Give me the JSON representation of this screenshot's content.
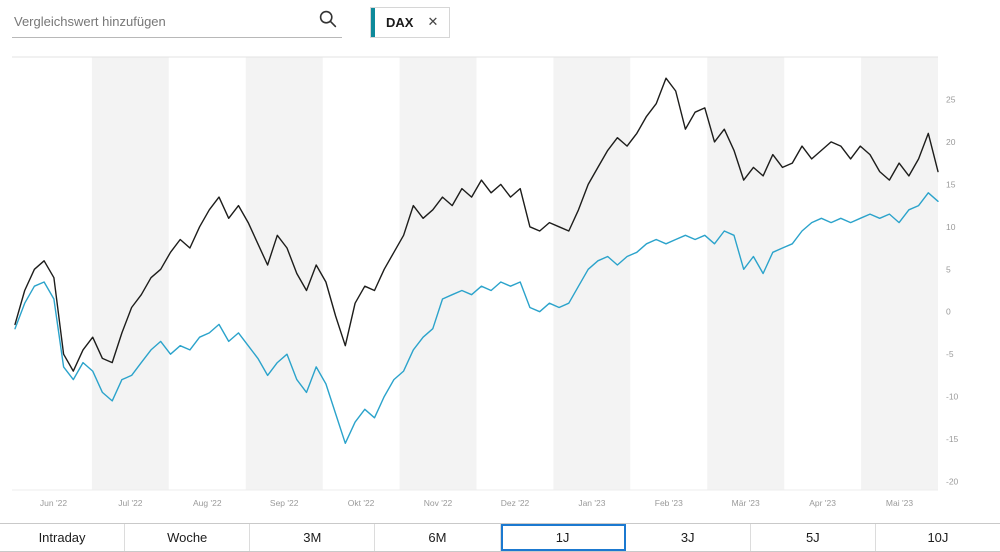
{
  "topbar": {
    "search_placeholder": "Vergleichswert hinzufügen",
    "search_icon": "magnifier-icon",
    "chip": {
      "label": "DAX",
      "accent_color": "#0e8a9b",
      "close_icon": "✕"
    }
  },
  "chart_data": {
    "type": "line",
    "title": "",
    "xlabel": "",
    "ylabel": "",
    "categories": [
      "Jun '22",
      "Jul '22",
      "Aug '22",
      "Sep '22",
      "Okt '22",
      "Nov '22",
      "Dez '22",
      "Jan '23",
      "Feb '23",
      "Mär '23",
      "Apr '23",
      "Mai '23"
    ],
    "points_per_month": 8,
    "ylim": [
      -21,
      30
    ],
    "yticks": [
      25,
      20,
      15,
      10,
      5,
      0,
      -5,
      -10,
      -15,
      -20
    ],
    "grid": "vertical-month-bands",
    "band_color": "#f3f3f3",
    "legend_position": "none",
    "series": [
      {
        "id": "primary",
        "name": "",
        "color": "#1d1d1b",
        "values": [
          -1.5,
          2.5,
          5,
          6,
          4,
          -5,
          -7,
          -4.5,
          -3,
          -5.5,
          -6,
          -2.5,
          0.5,
          2,
          4,
          5,
          7,
          8.5,
          7.5,
          10,
          12,
          13.5,
          11,
          12.5,
          10.5,
          8,
          5.5,
          9,
          7.5,
          4.5,
          2.5,
          5.5,
          3.5,
          -0.5,
          -4,
          1,
          3,
          2.5,
          5,
          7,
          9,
          12.5,
          11,
          12,
          13.5,
          12.5,
          14.5,
          13.5,
          15.5,
          14,
          15,
          13.5,
          14.5,
          10,
          9.5,
          10.5,
          10,
          9.5,
          12,
          15,
          17,
          19,
          20.5,
          19.5,
          21,
          23,
          24.5,
          27.5,
          26,
          21.5,
          23.5,
          24,
          20,
          21.5,
          19,
          15.5,
          17,
          16,
          18.5,
          17,
          17.5,
          19.5,
          18,
          19,
          20,
          19.5,
          18,
          19.5,
          18.5,
          16.5,
          15.5,
          17.5,
          16,
          18,
          21,
          16.5
        ]
      },
      {
        "id": "comparison",
        "name": "DAX",
        "color": "#2ba3cb",
        "values": [
          -2,
          1,
          3,
          3.5,
          1.5,
          -6.5,
          -8,
          -6,
          -7,
          -9.5,
          -10.5,
          -8,
          -7.5,
          -6,
          -4.5,
          -3.5,
          -5,
          -4,
          -4.5,
          -3,
          -2.5,
          -1.5,
          -3.5,
          -2.5,
          -4,
          -5.5,
          -7.5,
          -6,
          -5,
          -8,
          -9.5,
          -6.5,
          -8.5,
          -12,
          -15.5,
          -13,
          -11.5,
          -12.5,
          -10,
          -8,
          -7,
          -4.5,
          -3,
          -2,
          1.5,
          2,
          2.5,
          2,
          3,
          2.5,
          3.5,
          3,
          3.5,
          0.5,
          0,
          1,
          0.5,
          1,
          3,
          5,
          6,
          6.5,
          5.5,
          6.5,
          7,
          8,
          8.5,
          8,
          8.5,
          9,
          8.5,
          9,
          8,
          9.5,
          9,
          5,
          6.5,
          4.5,
          7,
          7.5,
          8,
          9.5,
          10.5,
          11,
          10.5,
          11,
          10.5,
          11,
          11.5,
          11,
          11.5,
          10.5,
          12,
          12.5,
          14,
          13
        ]
      }
    ]
  },
  "ranges": {
    "active_color": "#1b79d0",
    "items": [
      {
        "label": "Intraday",
        "active": false
      },
      {
        "label": "Woche",
        "active": false
      },
      {
        "label": "3M",
        "active": false
      },
      {
        "label": "6M",
        "active": false
      },
      {
        "label": "1J",
        "active": true
      },
      {
        "label": "3J",
        "active": false
      },
      {
        "label": "5J",
        "active": false
      },
      {
        "label": "10J",
        "active": false
      }
    ]
  }
}
